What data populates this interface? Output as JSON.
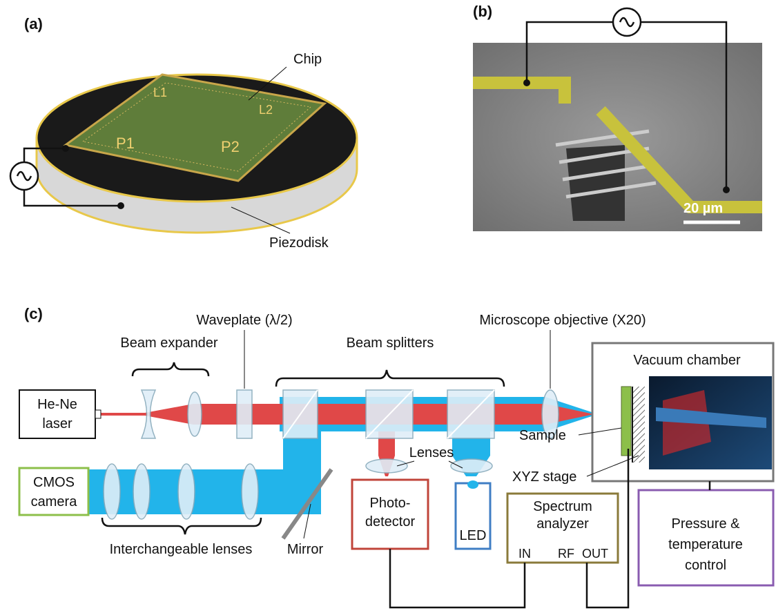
{
  "panel_a": {
    "label": "(a)",
    "chip": "Chip",
    "piezodisk": "Piezodisk",
    "chip_marks": [
      "L1",
      "L2",
      "P1",
      "P2"
    ]
  },
  "panel_b": {
    "label": "(b)",
    "scale_bar": "20 µm"
  },
  "panel_c": {
    "label": "(c)",
    "waveplate": "Waveplate (λ/2)",
    "beam_expander": "Beam expander",
    "beam_splitters": "Beam splitters",
    "objective": "Microscope objective (X20)",
    "vacuum_chamber": "Vacuum chamber",
    "laser": [
      "He-Ne",
      "laser"
    ],
    "camera": [
      "CMOS",
      "camera"
    ],
    "interchangeable_lenses": "Interchangeable lenses",
    "mirror": "Mirror",
    "lenses": "Lenses",
    "photodetector": [
      "Photo-",
      "detector"
    ],
    "led": "LED",
    "spectrum_analyzer": [
      "Spectrum",
      "analyzer"
    ],
    "ports": [
      "IN",
      "RF",
      "OUT"
    ],
    "sample": "Sample",
    "stage": "XYZ stage",
    "control": [
      "Pressure &",
      "temperature",
      "control"
    ]
  }
}
